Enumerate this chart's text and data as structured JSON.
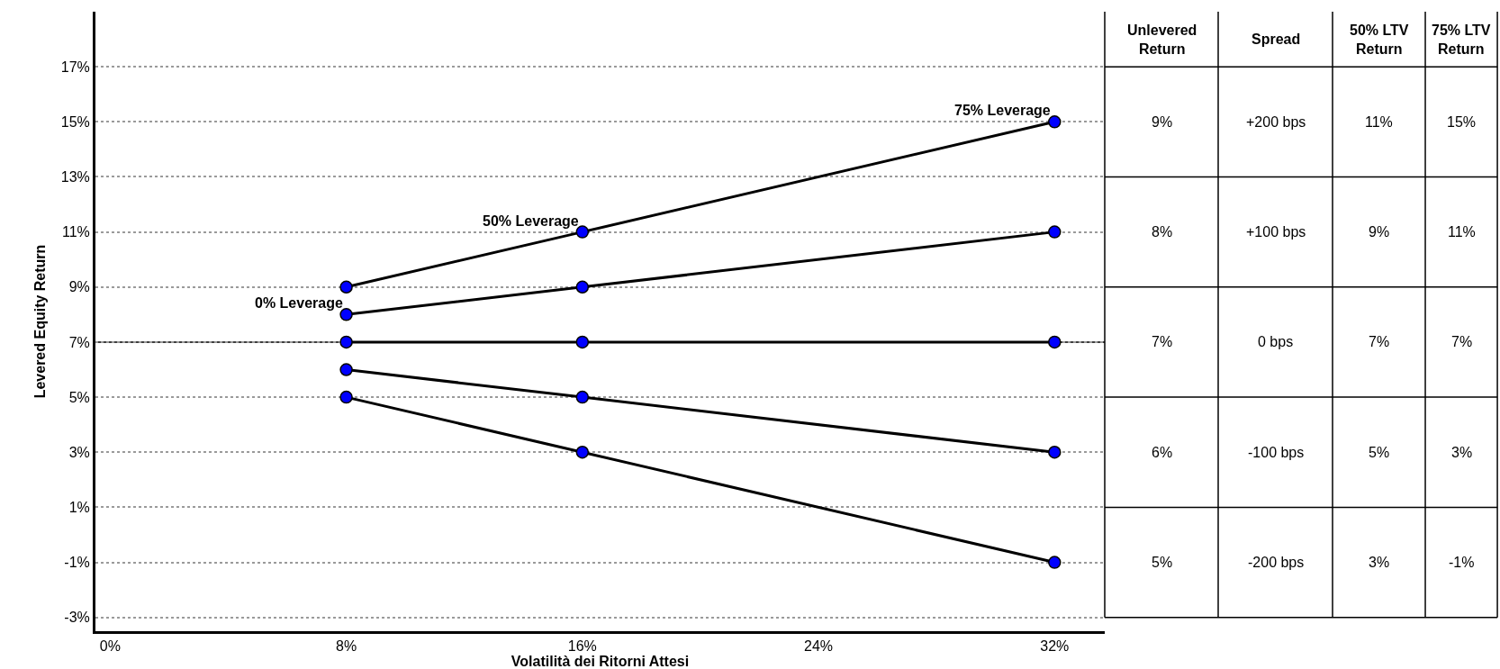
{
  "chart_data": {
    "type": "line",
    "xlabel": "Volatilità dei Ritorni Attesi",
    "ylabel": "Levered Equity Return",
    "x": [
      8,
      16,
      32
    ],
    "series": [
      {
        "color": "#0000ff",
        "values": [
          9,
          11,
          15
        ]
      },
      {
        "color": "#0000ff",
        "values": [
          8,
          9,
          11
        ]
      },
      {
        "color": "#0000ff",
        "values": [
          7,
          7,
          7
        ]
      },
      {
        "color": "#0000ff",
        "values": [
          6,
          5,
          3
        ]
      },
      {
        "color": "#0000ff",
        "values": [
          5,
          3,
          -1
        ]
      }
    ],
    "xlim": [
      -0.5,
      33.7
    ],
    "xticks": [
      {
        "value": 0,
        "label": "0%"
      },
      {
        "value": 8,
        "label": "8%"
      },
      {
        "value": 16,
        "label": "16%"
      },
      {
        "value": 24,
        "label": "24%"
      },
      {
        "value": 32,
        "label": "32%"
      }
    ],
    "ylim": [
      -3.5,
      19
    ],
    "yticks": [
      {
        "value": -3,
        "label": "-3%"
      },
      {
        "value": -1,
        "label": "-1%"
      },
      {
        "value": 1,
        "label": "1%"
      },
      {
        "value": 3,
        "label": "3%"
      },
      {
        "value": 5,
        "label": "5%"
      },
      {
        "value": 7,
        "label": "7%"
      },
      {
        "value": 9,
        "label": "9%"
      },
      {
        "value": 11,
        "label": "11%"
      },
      {
        "value": 13,
        "label": "13%"
      },
      {
        "value": 15,
        "label": "15%"
      },
      {
        "value": 17,
        "label": "17%"
      }
    ],
    "ref_lines": [
      {
        "axis": "y",
        "value": 7,
        "color": "#000000"
      }
    ],
    "annotations": [
      {
        "text": "0% Leverage",
        "x": 8,
        "y": 8
      },
      {
        "text": "50% Leverage",
        "x": 16,
        "y": 11
      },
      {
        "text": "75% Leverage",
        "x": 32,
        "y": 15
      },
      "Unlevered Return",
      "Spread",
      "50% LTV Return",
      "75% LTV Return",
      "9%",
      "+200 bps",
      "11%",
      "15%",
      "8%",
      "+100 bps",
      "9%",
      "11%",
      "7%",
      "0 bps",
      "7%",
      "7%",
      "6%",
      "-100 bps",
      "5%",
      "3%",
      "5%",
      "-200 bps",
      "3%",
      "-1%"
    ],
    "grid": "y",
    "marker": "circle",
    "line_style": "solid"
  }
}
